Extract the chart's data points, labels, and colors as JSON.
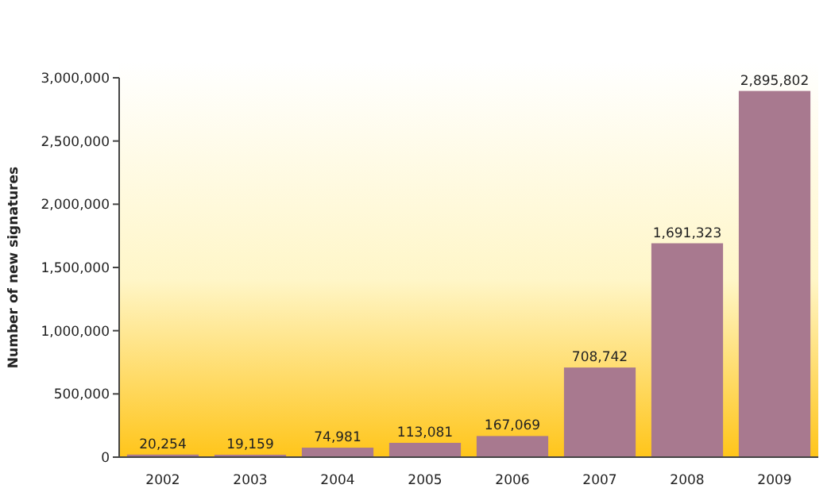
{
  "chart_data": {
    "type": "bar",
    "ylabel": "Number of new signatures",
    "categories": [
      "2002",
      "2003",
      "2004",
      "2005",
      "2006",
      "2007",
      "2008",
      "2009"
    ],
    "values": [
      20254,
      19159,
      74981,
      113081,
      167069,
      708742,
      1691323,
      2895802
    ],
    "color": "#a8798f",
    "ylim": [
      0,
      3000000
    ],
    "yticks": [
      {
        "value": 0,
        "label": "0"
      },
      {
        "value": 500000,
        "label": "500,000"
      },
      {
        "value": 1000000,
        "label": "1,000,000"
      },
      {
        "value": 1500000,
        "label": "1,500,000"
      },
      {
        "value": 2000000,
        "label": "2,000,000"
      },
      {
        "value": 2500000,
        "label": "2,500,000"
      },
      {
        "value": 3000000,
        "label": "3,000,000"
      }
    ],
    "value_labels": [
      "20,254",
      "19,159",
      "74,981",
      "113,081",
      "167,069",
      "708,742",
      "1,691,323",
      "2,895,802"
    ],
    "grid": false
  }
}
